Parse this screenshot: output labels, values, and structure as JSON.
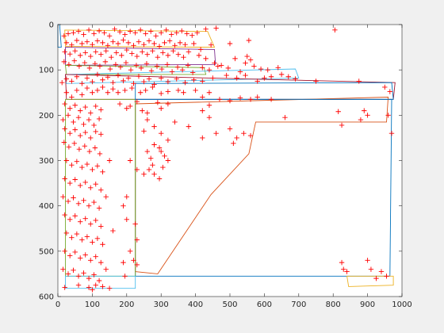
{
  "chart_data": {
    "type": "scatter",
    "title": "",
    "xlabel": "",
    "ylabel": "",
    "xlim": [
      0,
      1000
    ],
    "ylim": [
      0,
      600
    ],
    "y_reversed": true,
    "grid": false,
    "legend": "none",
    "xticks": [
      "0",
      "100",
      "200",
      "300",
      "400",
      "500",
      "600",
      "700",
      "800",
      "900",
      "1000"
    ],
    "yticks": [
      "0",
      "100",
      "200",
      "300",
      "400",
      "500",
      "600"
    ],
    "xtick_values": [
      0,
      100,
      200,
      300,
      400,
      500,
      600,
      700,
      800,
      900,
      1000
    ],
    "ytick_values": [
      0,
      100,
      200,
      300,
      400,
      500,
      600
    ],
    "marker": "+",
    "marker_color": "#ff0000",
    "points": [
      [
        18,
        25
      ],
      [
        30,
        20
      ],
      [
        45,
        18
      ],
      [
        60,
        15
      ],
      [
        75,
        22
      ],
      [
        90,
        12
      ],
      [
        105,
        20
      ],
      [
        120,
        14
      ],
      [
        135,
        18
      ],
      [
        150,
        25
      ],
      [
        165,
        10
      ],
      [
        180,
        16
      ],
      [
        195,
        22
      ],
      [
        210,
        15
      ],
      [
        225,
        18
      ],
      [
        240,
        12
      ],
      [
        255,
        20
      ],
      [
        270,
        15
      ],
      [
        285,
        25
      ],
      [
        300,
        18
      ],
      [
        315,
        12
      ],
      [
        330,
        22
      ],
      [
        345,
        18
      ],
      [
        360,
        14
      ],
      [
        375,
        20
      ],
      [
        390,
        24
      ],
      [
        405,
        18
      ],
      [
        430,
        10
      ],
      [
        460,
        8
      ],
      [
        805,
        12
      ],
      [
        25,
        40
      ],
      [
        40,
        45
      ],
      [
        55,
        35
      ],
      [
        70,
        42
      ],
      [
        85,
        38
      ],
      [
        100,
        44
      ],
      [
        115,
        36
      ],
      [
        130,
        40
      ],
      [
        145,
        46
      ],
      [
        160,
        38
      ],
      [
        175,
        42
      ],
      [
        190,
        34
      ],
      [
        205,
        40
      ],
      [
        220,
        46
      ],
      [
        235,
        38
      ],
      [
        250,
        44
      ],
      [
        265,
        36
      ],
      [
        280,
        42
      ],
      [
        295,
        48
      ],
      [
        310,
        40
      ],
      [
        325,
        36
      ],
      [
        340,
        46
      ],
      [
        355,
        40
      ],
      [
        370,
        44
      ],
      [
        395,
        42
      ],
      [
        415,
        55
      ],
      [
        445,
        45
      ],
      [
        500,
        42
      ],
      [
        555,
        35
      ],
      [
        20,
        60
      ],
      [
        35,
        65
      ],
      [
        50,
        58
      ],
      [
        65,
        68
      ],
      [
        80,
        62
      ],
      [
        95,
        70
      ],
      [
        110,
        60
      ],
      [
        125,
        66
      ],
      [
        140,
        58
      ],
      [
        155,
        72
      ],
      [
        170,
        62
      ],
      [
        185,
        68
      ],
      [
        200,
        56
      ],
      [
        215,
        64
      ],
      [
        230,
        70
      ],
      [
        245,
        60
      ],
      [
        260,
        66
      ],
      [
        275,
        58
      ],
      [
        290,
        72
      ],
      [
        305,
        62
      ],
      [
        320,
        68
      ],
      [
        335,
        58
      ],
      [
        350,
        66
      ],
      [
        365,
        72
      ],
      [
        380,
        60
      ],
      [
        410,
        68
      ],
      [
        430,
        75
      ],
      [
        455,
        85
      ],
      [
        475,
        90
      ],
      [
        515,
        75
      ],
      [
        550,
        70
      ],
      [
        560,
        78
      ],
      [
        18,
        82
      ],
      [
        32,
        88
      ],
      [
        48,
        80
      ],
      [
        62,
        92
      ],
      [
        78,
        84
      ],
      [
        92,
        96
      ],
      [
        108,
        86
      ],
      [
        122,
        92
      ],
      [
        138,
        82
      ],
      [
        152,
        98
      ],
      [
        168,
        88
      ],
      [
        182,
        94
      ],
      [
        198,
        84
      ],
      [
        212,
        100
      ],
      [
        228,
        90
      ],
      [
        242,
        96
      ],
      [
        258,
        86
      ],
      [
        272,
        102
      ],
      [
        288,
        92
      ],
      [
        302,
        98
      ],
      [
        318,
        88
      ],
      [
        332,
        104
      ],
      [
        348,
        94
      ],
      [
        362,
        100
      ],
      [
        378,
        90
      ],
      [
        392,
        106
      ],
      [
        420,
        95
      ],
      [
        440,
        100
      ],
      [
        465,
        92
      ],
      [
        495,
        96
      ],
      [
        530,
        104
      ],
      [
        545,
        85
      ],
      [
        570,
        92
      ],
      [
        590,
        98
      ],
      [
        610,
        100
      ],
      [
        640,
        95
      ],
      [
        650,
        110
      ],
      [
        670,
        115
      ],
      [
        12,
        128
      ],
      [
        25,
        120
      ],
      [
        40,
        125
      ],
      [
        55,
        115
      ],
      [
        70,
        130
      ],
      [
        85,
        118
      ],
      [
        100,
        126
      ],
      [
        115,
        110
      ],
      [
        130,
        122
      ],
      [
        145,
        116
      ],
      [
        160,
        128
      ],
      [
        175,
        112
      ],
      [
        190,
        124
      ],
      [
        205,
        118
      ],
      [
        220,
        130
      ],
      [
        235,
        114
      ],
      [
        250,
        126
      ],
      [
        265,
        120
      ],
      [
        280,
        132
      ],
      [
        300,
        118
      ],
      [
        320,
        126
      ],
      [
        345,
        120
      ],
      [
        370,
        128
      ],
      [
        395,
        122
      ],
      [
        420,
        125
      ],
      [
        450,
        118
      ],
      [
        490,
        112
      ],
      [
        520,
        118
      ],
      [
        545,
        112
      ],
      [
        580,
        125
      ],
      [
        600,
        118
      ],
      [
        620,
        115
      ],
      [
        690,
        120
      ],
      [
        750,
        125
      ],
      [
        875,
        125
      ],
      [
        950,
        138
      ],
      [
        965,
        148
      ],
      [
        25,
        150
      ],
      [
        40,
        160
      ],
      [
        55,
        145
      ],
      [
        70,
        155
      ],
      [
        85,
        140
      ],
      [
        100,
        150
      ],
      [
        115,
        145
      ],
      [
        130,
        138
      ],
      [
        145,
        150
      ],
      [
        160,
        142
      ],
      [
        175,
        150
      ],
      [
        195,
        145
      ],
      [
        215,
        140
      ],
      [
        240,
        150
      ],
      [
        255,
        145
      ],
      [
        275,
        138
      ],
      [
        300,
        152
      ],
      [
        320,
        148
      ],
      [
        350,
        145
      ],
      [
        365,
        150
      ],
      [
        400,
        145
      ],
      [
        420,
        160
      ],
      [
        440,
        150
      ],
      [
        470,
        165
      ],
      [
        500,
        168
      ],
      [
        530,
        162
      ],
      [
        560,
        165
      ],
      [
        580,
        160
      ],
      [
        620,
        165
      ],
      [
        660,
        205
      ],
      [
        825,
        222
      ],
      [
        815,
        192
      ],
      [
        890,
        190
      ],
      [
        900,
        200
      ],
      [
        880,
        210
      ],
      [
        960,
        200
      ],
      [
        970,
        240
      ],
      [
        20,
        175
      ],
      [
        35,
        185
      ],
      [
        50,
        178
      ],
      [
        65,
        190
      ],
      [
        80,
        182
      ],
      [
        95,
        195
      ],
      [
        110,
        180
      ],
      [
        125,
        188
      ],
      [
        180,
        175
      ],
      [
        200,
        185
      ],
      [
        210,
        180
      ],
      [
        230,
        170
      ],
      [
        245,
        190
      ],
      [
        260,
        195
      ],
      [
        290,
        172
      ],
      [
        300,
        185
      ],
      [
        320,
        175
      ],
      [
        420,
        190
      ],
      [
        440,
        178
      ],
      [
        15,
        210
      ],
      [
        30,
        200
      ],
      [
        45,
        215
      ],
      [
        60,
        205
      ],
      [
        75,
        220
      ],
      [
        90,
        210
      ],
      [
        105,
        222
      ],
      [
        120,
        208
      ],
      [
        20,
        230
      ],
      [
        35,
        240
      ],
      [
        50,
        232
      ],
      [
        65,
        245
      ],
      [
        80,
        238
      ],
      [
        95,
        250
      ],
      [
        110,
        236
      ],
      [
        125,
        242
      ],
      [
        260,
        210
      ],
      [
        280,
        225
      ],
      [
        300,
        240
      ],
      [
        320,
        255
      ],
      [
        340,
        215
      ],
      [
        380,
        225
      ],
      [
        420,
        250
      ],
      [
        440,
        205
      ],
      [
        460,
        240
      ],
      [
        500,
        230
      ],
      [
        510,
        262
      ],
      [
        520,
        250
      ],
      [
        540,
        240
      ],
      [
        560,
        245
      ],
      [
        280,
        265
      ],
      [
        295,
        272
      ],
      [
        300,
        280
      ],
      [
        310,
        290
      ],
      [
        250,
        235
      ],
      [
        18,
        260
      ],
      [
        32,
        270
      ],
      [
        48,
        262
      ],
      [
        62,
        275
      ],
      [
        78,
        268
      ],
      [
        92,
        280
      ],
      [
        108,
        272
      ],
      [
        122,
        285
      ],
      [
        25,
        300
      ],
      [
        40,
        310
      ],
      [
        55,
        302
      ],
      [
        70,
        315
      ],
      [
        85,
        308
      ],
      [
        100,
        320
      ],
      [
        115,
        312
      ],
      [
        130,
        325
      ],
      [
        260,
        280
      ],
      [
        270,
        295
      ],
      [
        275,
        310
      ],
      [
        265,
        320
      ],
      [
        280,
        330
      ],
      [
        295,
        340
      ],
      [
        305,
        315
      ],
      [
        320,
        300
      ],
      [
        210,
        300
      ],
      [
        150,
        300
      ],
      [
        230,
        320
      ],
      [
        250,
        330
      ],
      [
        20,
        340
      ],
      [
        35,
        350
      ],
      [
        50,
        342
      ],
      [
        65,
        355
      ],
      [
        80,
        348
      ],
      [
        95,
        360
      ],
      [
        110,
        352
      ],
      [
        125,
        365
      ],
      [
        15,
        380
      ],
      [
        30,
        390
      ],
      [
        45,
        382
      ],
      [
        60,
        395
      ],
      [
        75,
        388
      ],
      [
        90,
        400
      ],
      [
        105,
        392
      ],
      [
        120,
        405
      ],
      [
        140,
        380
      ],
      [
        190,
        400
      ],
      [
        200,
        380
      ],
      [
        20,
        420
      ],
      [
        35,
        430
      ],
      [
        50,
        422
      ],
      [
        65,
        435
      ],
      [
        80,
        428
      ],
      [
        95,
        440
      ],
      [
        110,
        432
      ],
      [
        125,
        445
      ],
      [
        25,
        460
      ],
      [
        40,
        470
      ],
      [
        55,
        462
      ],
      [
        70,
        475
      ],
      [
        85,
        468
      ],
      [
        100,
        480
      ],
      [
        115,
        472
      ],
      [
        130,
        485
      ],
      [
        160,
        455
      ],
      [
        200,
        430
      ],
      [
        225,
        440
      ],
      [
        230,
        475
      ],
      [
        210,
        500
      ],
      [
        20,
        500
      ],
      [
        35,
        510
      ],
      [
        50,
        502
      ],
      [
        65,
        515
      ],
      [
        80,
        508
      ],
      [
        95,
        520
      ],
      [
        110,
        512
      ],
      [
        125,
        525
      ],
      [
        15,
        540
      ],
      [
        30,
        550
      ],
      [
        45,
        542
      ],
      [
        60,
        555
      ],
      [
        75,
        548
      ],
      [
        90,
        560
      ],
      [
        105,
        552
      ],
      [
        120,
        565
      ],
      [
        140,
        540
      ],
      [
        190,
        525
      ],
      [
        220,
        520
      ],
      [
        230,
        530
      ],
      [
        825,
        525
      ],
      [
        830,
        540
      ],
      [
        900,
        520
      ],
      [
        910,
        540
      ],
      [
        940,
        545
      ],
      [
        955,
        555
      ],
      [
        840,
        545
      ],
      [
        20,
        580
      ],
      [
        60,
        575
      ],
      [
        90,
        580
      ],
      [
        100,
        585
      ],
      [
        110,
        575
      ],
      [
        130,
        578
      ],
      [
        150,
        582
      ],
      [
        195,
        555
      ],
      [
        925,
        560
      ]
    ],
    "polygons": [
      {
        "color": "#0072bd",
        "points": [
          [
            0,
            0
          ],
          [
            5,
            0
          ],
          [
            10,
            50
          ],
          [
            0,
            50
          ]
        ]
      },
      {
        "color": "#edb120",
        "points": [
          [
            20,
            12
          ],
          [
            435,
            15
          ],
          [
            455,
            50
          ],
          [
            22,
            48
          ]
        ]
      },
      {
        "color": "#7e2f8e",
        "points": [
          [
            22,
            50
          ],
          [
            455,
            55
          ],
          [
            458,
            88
          ],
          [
            22,
            90
          ]
        ]
      },
      {
        "color": "#77ac30",
        "points": [
          [
            22,
            90
          ],
          [
            425,
            95
          ],
          [
            430,
            110
          ],
          [
            25,
            110
          ]
        ]
      },
      {
        "color": "#4dbeee",
        "points": [
          [
            22,
            110
          ],
          [
            690,
            98
          ],
          [
            700,
            118
          ],
          [
            25,
            130
          ]
        ]
      },
      {
        "color": "#a2142f",
        "points": [
          [
            22,
            110
          ],
          [
            980,
            128
          ],
          [
            975,
            165
          ],
          [
            25,
            165
          ]
        ]
      },
      {
        "color": "#0072bd",
        "points": [
          [
            225,
            165
          ],
          [
            970,
            165
          ],
          [
            965,
            555
          ],
          [
            225,
            555
          ]
        ]
      },
      {
        "color": "#d95319",
        "points": [
          [
            225,
            175
          ],
          [
            960,
            160
          ],
          [
            955,
            215
          ],
          [
            575,
            215
          ],
          [
            555,
            285
          ],
          [
            445,
            375
          ],
          [
            290,
            550
          ],
          [
            225,
            545
          ]
        ]
      },
      {
        "color": "#77ac30",
        "points": [
          [
            22,
            165
          ],
          [
            225,
            165
          ],
          [
            225,
            555
          ],
          [
            22,
            555
          ]
        ]
      },
      {
        "color": "#4dbeee",
        "points": [
          [
            22,
            555
          ],
          [
            225,
            555
          ],
          [
            225,
            582
          ],
          [
            22,
            582
          ]
        ]
      },
      {
        "color": "#0072bd",
        "points": [
          [
            225,
            130
          ],
          [
            970,
            128
          ],
          [
            975,
            165
          ],
          [
            225,
            165
          ]
        ]
      },
      {
        "color": "#edb120",
        "points": [
          [
            840,
            555
          ],
          [
            975,
            555
          ],
          [
            975,
            575
          ],
          [
            845,
            578
          ]
        ]
      }
    ]
  }
}
